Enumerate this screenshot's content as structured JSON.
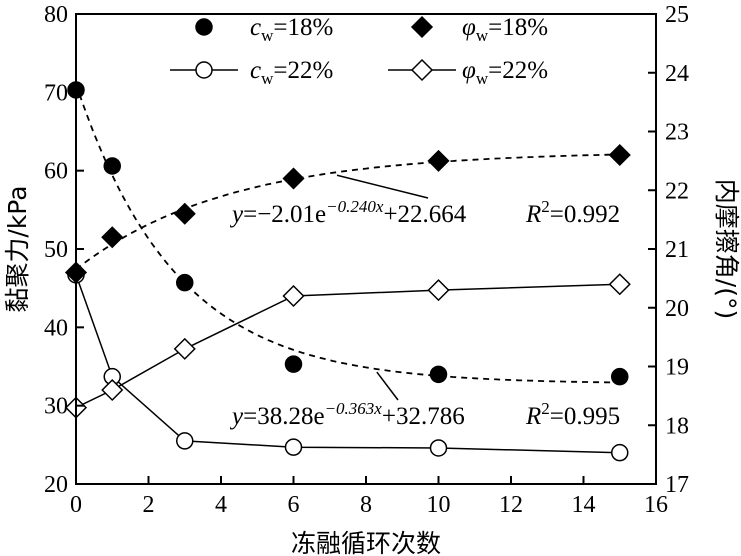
{
  "chart_data": {
    "type": "scatter",
    "x_axis": {
      "label": "冻融循环次数",
      "range": [
        0,
        16
      ],
      "ticks": [
        0,
        2,
        4,
        6,
        8,
        10,
        12,
        14,
        16
      ]
    },
    "y_left_axis": {
      "label": "黏聚力/kPa",
      "range": [
        20,
        80
      ],
      "ticks": [
        20,
        30,
        40,
        50,
        60,
        70,
        80
      ]
    },
    "y_right_axis": {
      "label": "内摩擦角/(°)",
      "range": [
        17,
        25
      ],
      "ticks": [
        17,
        18,
        19,
        20,
        21,
        22,
        23,
        24,
        25
      ]
    },
    "legend": {
      "position": "top",
      "entries": [
        {
          "symbol": "c",
          "sub": "w",
          "suffix": "=18%"
        },
        {
          "symbol": "φ",
          "sub": "w",
          "suffix": "=18%"
        },
        {
          "symbol": "c",
          "sub": "w",
          "suffix": "=22%"
        },
        {
          "symbol": "φ",
          "sub": "w",
          "suffix": "=22%"
        }
      ]
    },
    "series": [
      {
        "key": "c18",
        "axis": "left",
        "marker": "filled-circle",
        "line": "none",
        "x": [
          0,
          1,
          3,
          6,
          10,
          15
        ],
        "values": [
          70.3,
          60.6,
          45.7,
          35.3,
          34.0,
          33.7
        ]
      },
      {
        "key": "c22",
        "axis": "left",
        "marker": "open-circle",
        "line": "solid",
        "x": [
          0,
          1,
          3,
          6,
          10,
          15
        ],
        "values": [
          46.7,
          33.7,
          25.5,
          24.7,
          24.6,
          24.0
        ]
      },
      {
        "key": "phi18",
        "axis": "right",
        "marker": "filled-diamond",
        "line": "none",
        "x": [
          0,
          1,
          3,
          6,
          10,
          15
        ],
        "values": [
          20.6,
          21.2,
          21.6,
          22.2,
          22.5,
          22.6
        ]
      },
      {
        "key": "phi22",
        "axis": "right",
        "marker": "open-diamond",
        "line": "solid",
        "x": [
          0,
          1,
          3,
          6,
          10,
          15
        ],
        "values": [
          18.3,
          18.6,
          19.3,
          20.2,
          20.3,
          20.4
        ]
      }
    ],
    "fits": [
      {
        "key": "fit_phi",
        "axis": "right",
        "style": "dashed",
        "a": -2.01,
        "b": -0.24,
        "c": 22.664,
        "equation": {
          "y": "y",
          "eq1": "=−2.01e",
          "exp": "−0.240x",
          "eq2": "+22.664"
        },
        "r2": {
          "r": "R",
          "sup": "2",
          "val": "=0.992"
        }
      },
      {
        "key": "fit_c",
        "axis": "left",
        "style": "dashed",
        "a": 38.28,
        "b": -0.363,
        "c": 32.786,
        "equation": {
          "y": "y",
          "eq1": "=38.28e",
          "exp": "−0.363x",
          "eq2": "+32.786"
        },
        "r2": {
          "r": "R",
          "sup": "2",
          "val": "=0.995"
        }
      }
    ]
  }
}
